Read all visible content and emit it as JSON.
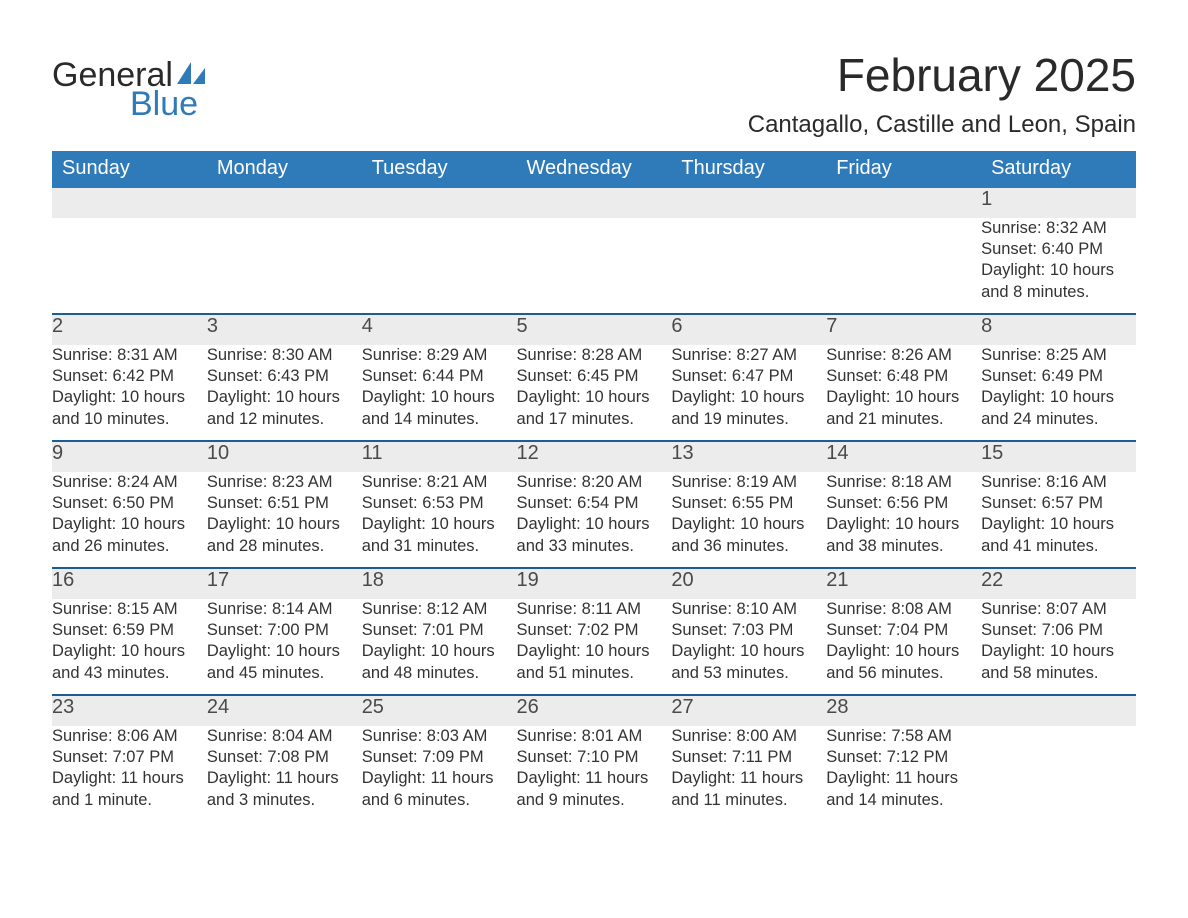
{
  "logo": {
    "word1": "General",
    "word2": "Blue",
    "sail_fill": "#2f7ab8"
  },
  "title": "February 2025",
  "location": "Cantagallo, Castille and Leon, Spain",
  "colors": {
    "header_bg": "#2f7ab8",
    "header_text": "#ffffff",
    "divider": "#1e5d94",
    "daynum_bg": "#ececec",
    "text": "#333333",
    "page_bg": "#ffffff"
  },
  "typography": {
    "title_fontsize": 46,
    "location_fontsize": 24,
    "weekday_fontsize": 20,
    "daynum_fontsize": 20,
    "detail_fontsize": 16.5,
    "font_family": "Segoe UI"
  },
  "weekdays": [
    "Sunday",
    "Monday",
    "Tuesday",
    "Wednesday",
    "Thursday",
    "Friday",
    "Saturday"
  ],
  "labels": {
    "sunrise": "Sunrise:",
    "sunset": "Sunset:",
    "daylight": "Daylight:"
  },
  "weeks": [
    {
      "days": [
        {},
        {},
        {},
        {},
        {},
        {},
        {
          "n": "1",
          "sr": "8:32 AM",
          "ss": "6:40 PM",
          "dl": "10 hours and 8 minutes."
        }
      ]
    },
    {
      "days": [
        {
          "n": "2",
          "sr": "8:31 AM",
          "ss": "6:42 PM",
          "dl": "10 hours and 10 minutes."
        },
        {
          "n": "3",
          "sr": "8:30 AM",
          "ss": "6:43 PM",
          "dl": "10 hours and 12 minutes."
        },
        {
          "n": "4",
          "sr": "8:29 AM",
          "ss": "6:44 PM",
          "dl": "10 hours and 14 minutes."
        },
        {
          "n": "5",
          "sr": "8:28 AM",
          "ss": "6:45 PM",
          "dl": "10 hours and 17 minutes."
        },
        {
          "n": "6",
          "sr": "8:27 AM",
          "ss": "6:47 PM",
          "dl": "10 hours and 19 minutes."
        },
        {
          "n": "7",
          "sr": "8:26 AM",
          "ss": "6:48 PM",
          "dl": "10 hours and 21 minutes."
        },
        {
          "n": "8",
          "sr": "8:25 AM",
          "ss": "6:49 PM",
          "dl": "10 hours and 24 minutes."
        }
      ]
    },
    {
      "days": [
        {
          "n": "9",
          "sr": "8:24 AM",
          "ss": "6:50 PM",
          "dl": "10 hours and 26 minutes."
        },
        {
          "n": "10",
          "sr": "8:23 AM",
          "ss": "6:51 PM",
          "dl": "10 hours and 28 minutes."
        },
        {
          "n": "11",
          "sr": "8:21 AM",
          "ss": "6:53 PM",
          "dl": "10 hours and 31 minutes."
        },
        {
          "n": "12",
          "sr": "8:20 AM",
          "ss": "6:54 PM",
          "dl": "10 hours and 33 minutes."
        },
        {
          "n": "13",
          "sr": "8:19 AM",
          "ss": "6:55 PM",
          "dl": "10 hours and 36 minutes."
        },
        {
          "n": "14",
          "sr": "8:18 AM",
          "ss": "6:56 PM",
          "dl": "10 hours and 38 minutes."
        },
        {
          "n": "15",
          "sr": "8:16 AM",
          "ss": "6:57 PM",
          "dl": "10 hours and 41 minutes."
        }
      ]
    },
    {
      "days": [
        {
          "n": "16",
          "sr": "8:15 AM",
          "ss": "6:59 PM",
          "dl": "10 hours and 43 minutes."
        },
        {
          "n": "17",
          "sr": "8:14 AM",
          "ss": "7:00 PM",
          "dl": "10 hours and 45 minutes."
        },
        {
          "n": "18",
          "sr": "8:12 AM",
          "ss": "7:01 PM",
          "dl": "10 hours and 48 minutes."
        },
        {
          "n": "19",
          "sr": "8:11 AM",
          "ss": "7:02 PM",
          "dl": "10 hours and 51 minutes."
        },
        {
          "n": "20",
          "sr": "8:10 AM",
          "ss": "7:03 PM",
          "dl": "10 hours and 53 minutes."
        },
        {
          "n": "21",
          "sr": "8:08 AM",
          "ss": "7:04 PM",
          "dl": "10 hours and 56 minutes."
        },
        {
          "n": "22",
          "sr": "8:07 AM",
          "ss": "7:06 PM",
          "dl": "10 hours and 58 minutes."
        }
      ]
    },
    {
      "days": [
        {
          "n": "23",
          "sr": "8:06 AM",
          "ss": "7:07 PM",
          "dl": "11 hours and 1 minute."
        },
        {
          "n": "24",
          "sr": "8:04 AM",
          "ss": "7:08 PM",
          "dl": "11 hours and 3 minutes."
        },
        {
          "n": "25",
          "sr": "8:03 AM",
          "ss": "7:09 PM",
          "dl": "11 hours and 6 minutes."
        },
        {
          "n": "26",
          "sr": "8:01 AM",
          "ss": "7:10 PM",
          "dl": "11 hours and 9 minutes."
        },
        {
          "n": "27",
          "sr": "8:00 AM",
          "ss": "7:11 PM",
          "dl": "11 hours and 11 minutes."
        },
        {
          "n": "28",
          "sr": "7:58 AM",
          "ss": "7:12 PM",
          "dl": "11 hours and 14 minutes."
        },
        {}
      ]
    }
  ]
}
